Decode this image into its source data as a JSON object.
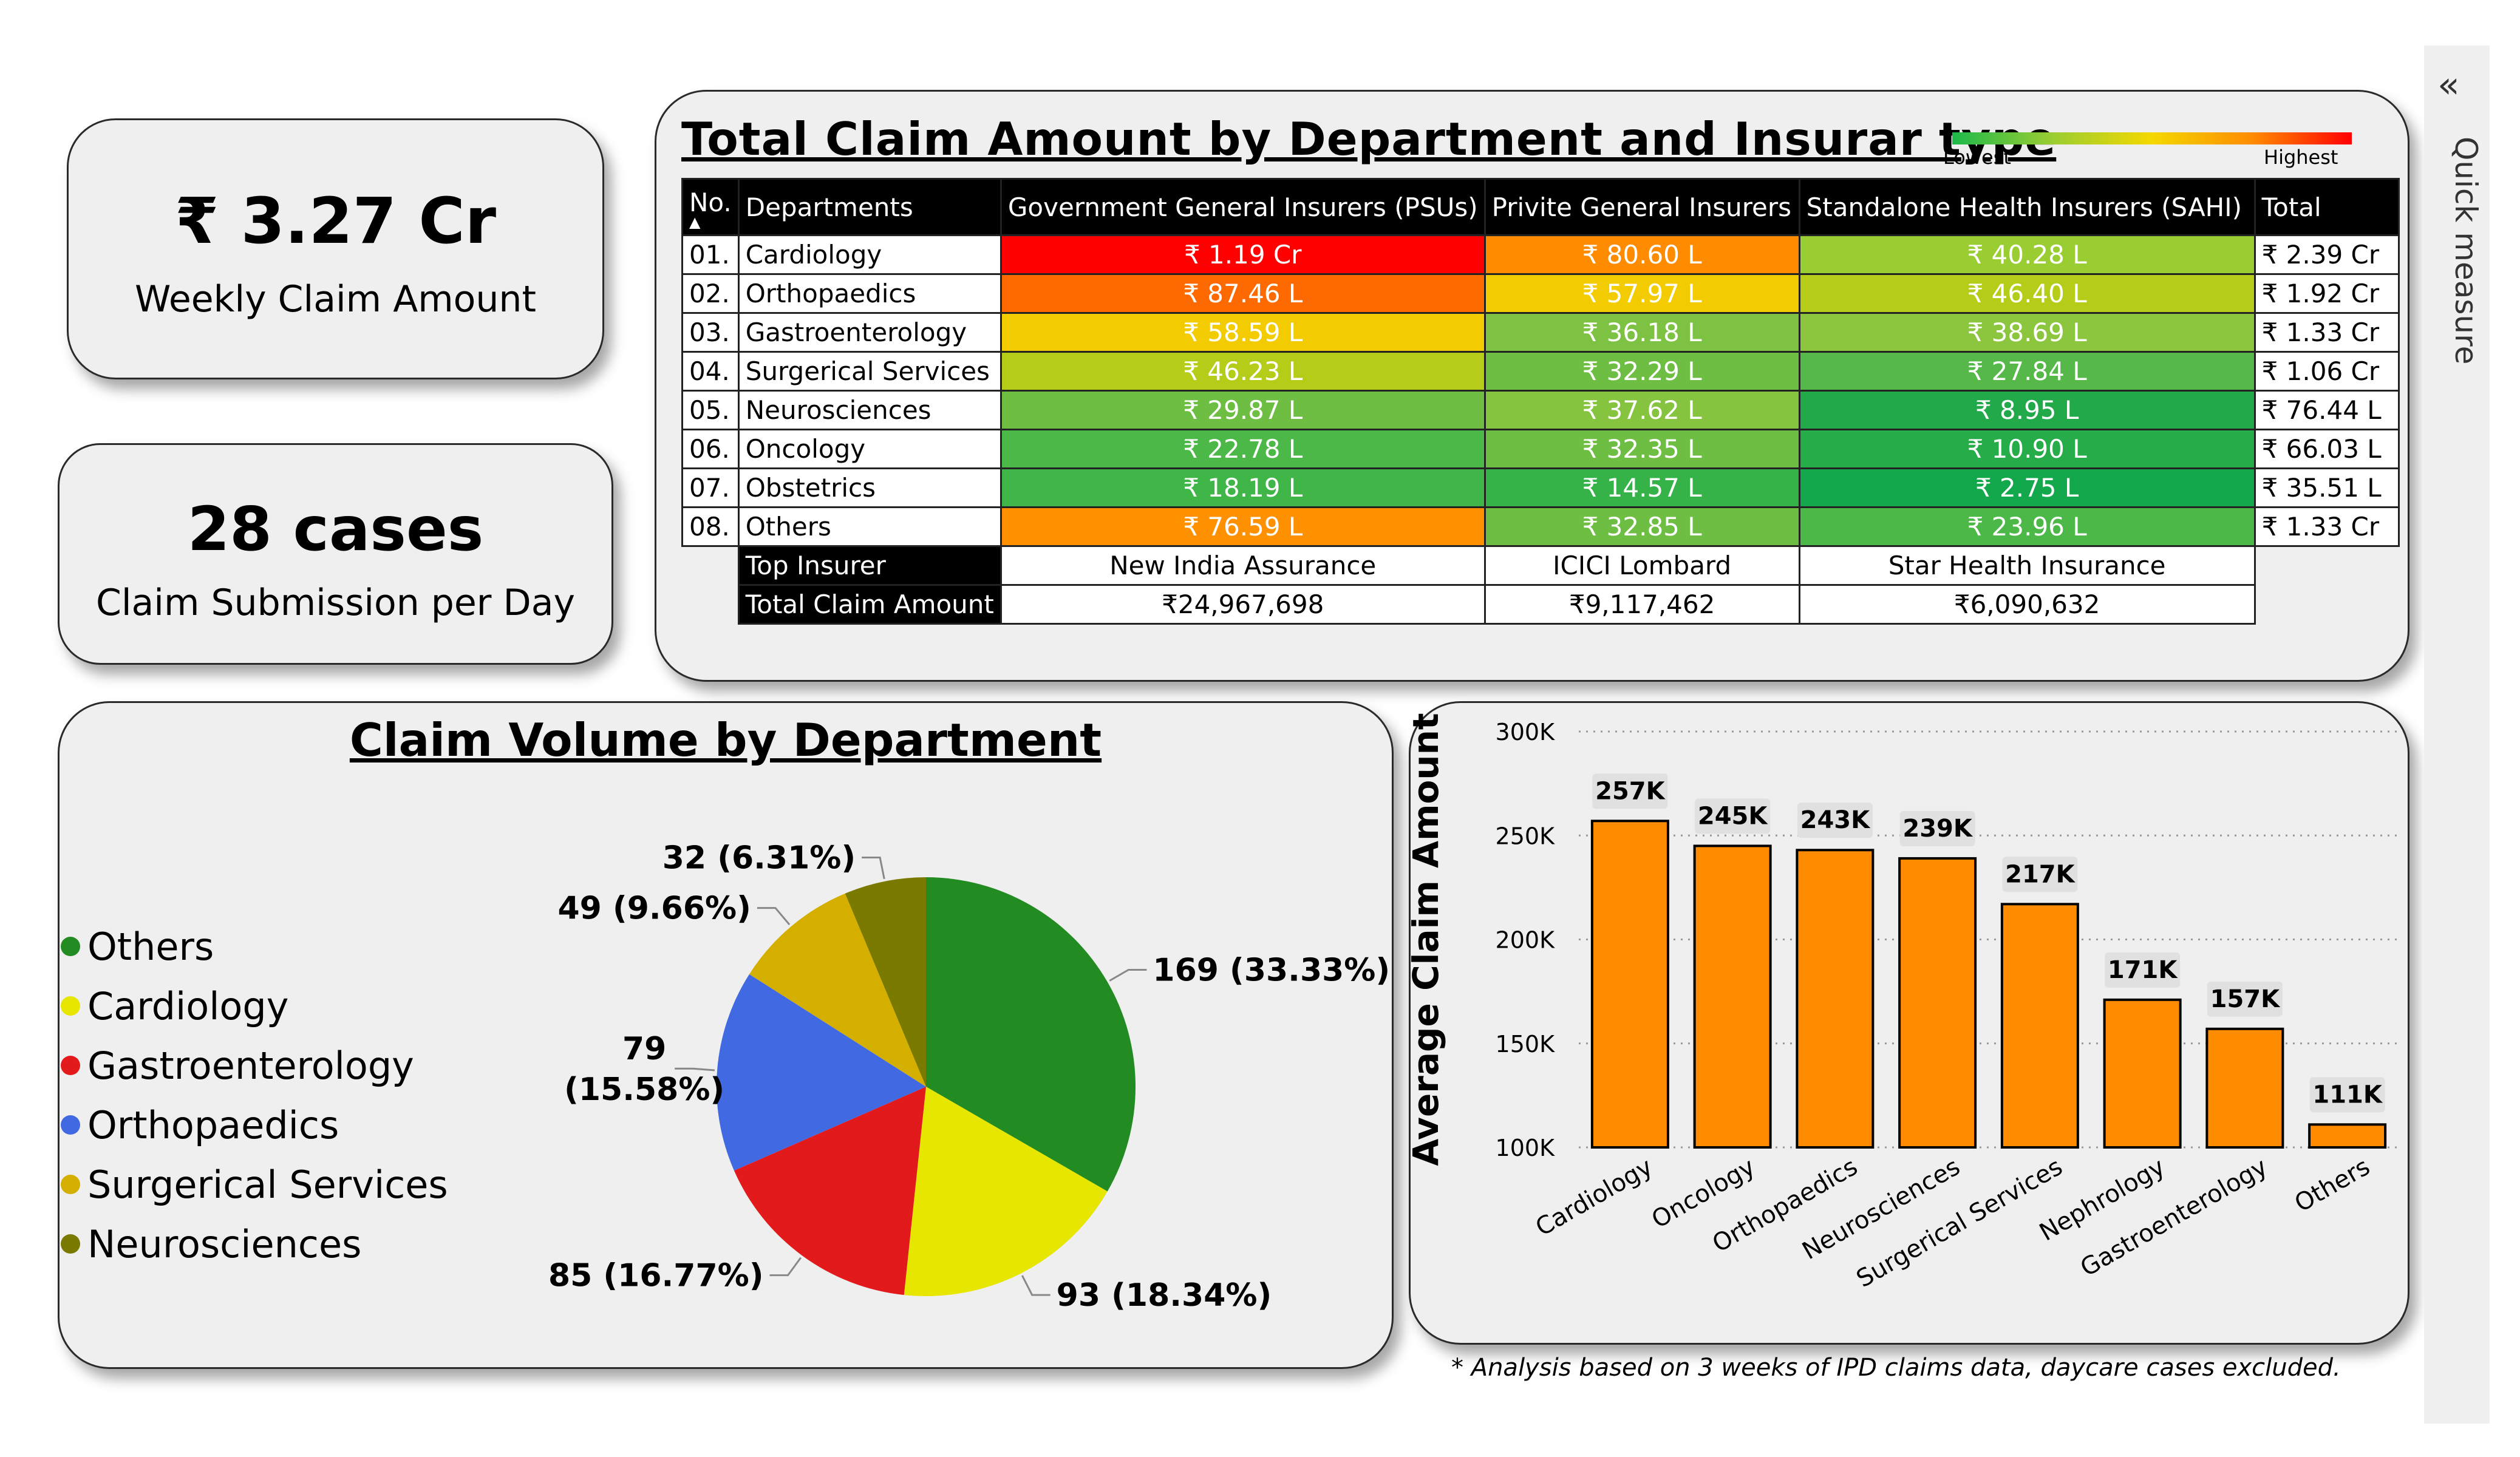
{
  "kpis": {
    "weekly_value": "₹ 3.27 Cr",
    "weekly_label": "Weekly Claim Amount",
    "cases_value": "28 cases",
    "cases_label": "Claim Submission per Day"
  },
  "matrix": {
    "title": "Total Claim Amount by Department and Insurar type",
    "legend_low": "Lowest",
    "legend_high": "Highest",
    "headers": [
      "No.",
      "Departments",
      "Government General Insurers (PSUs)",
      "Privite General Insurers",
      "Standalone Health Insurers (SAHI)",
      "Total"
    ],
    "rows": [
      {
        "no": "01.",
        "dept": "Cardiology",
        "psu": "₹ 1.19 Cr",
        "pvt": "₹ 80.60 L",
        "sahi": "₹ 40.28 L",
        "total": "₹ 2.39 Cr",
        "psu_color": "#ff0000",
        "pvt_color": "#ff8c00",
        "sahi_color": "#9acd32"
      },
      {
        "no": "02.",
        "dept": "Orthopaedics",
        "psu": "₹ 87.46 L",
        "pvt": "₹ 57.97 L",
        "sahi": "₹ 46.40 L",
        "total": "₹ 1.92 Cr",
        "psu_color": "#ff6a00",
        "pvt_color": "#f2cc00",
        "sahi_color": "#b5cc18"
      },
      {
        "no": "03.",
        "dept": "Gastroenterology",
        "psu": "₹ 58.59 L",
        "pvt": "₹ 36.18 L",
        "sahi": "₹ 38.69 L",
        "total": "₹ 1.33 Cr",
        "psu_color": "#f2cc00",
        "pvt_color": "#7dc242",
        "sahi_color": "#8cc63f"
      },
      {
        "no": "04.",
        "dept": "Surgerical Services",
        "psu": "₹ 46.23 L",
        "pvt": "₹ 32.29 L",
        "sahi": "₹ 27.84 L",
        "total": "₹ 1.06 Cr",
        "psu_color": "#b5cc18",
        "pvt_color": "#6ebe44",
        "sahi_color": "#55b848"
      },
      {
        "no": "05.",
        "dept": "Neurosciences",
        "psu": "₹ 29.87 L",
        "pvt": "₹ 37.62 L",
        "sahi": "₹ 8.95 L",
        "total": "₹ 76.44 L",
        "psu_color": "#6ebe44",
        "pvt_color": "#86c440",
        "sahi_color": "#22aa4a"
      },
      {
        "no": "06.",
        "dept": "Oncology",
        "psu": "₹ 22.78 L",
        "pvt": "₹ 32.35 L",
        "sahi": "₹ 10.90 L",
        "total": "₹ 66.03 L",
        "psu_color": "#4cb848",
        "pvt_color": "#6ebe44",
        "sahi_color": "#26ac49"
      },
      {
        "no": "07.",
        "dept": "Obstetrics",
        "psu": "₹ 18.19 L",
        "pvt": "₹ 14.57 L",
        "sahi": "₹ 2.75 L",
        "total": "₹ 35.51 L",
        "psu_color": "#40b548",
        "pvt_color": "#36b348",
        "sahi_color": "#12a84b"
      },
      {
        "no": "08.",
        "dept": "Others",
        "psu": "₹ 76.59 L",
        "pvt": "₹ 32.85 L",
        "sahi": "₹ 23.96 L",
        "total": "₹ 1.33 Cr",
        "psu_color": "#ff9000",
        "pvt_color": "#6ebe44",
        "sahi_color": "#4cb848"
      }
    ],
    "top_insurer_label": "Top Insurer",
    "total_claim_label": "Total Claim Amount",
    "top_insurers": [
      "New India Assurance",
      "ICICI Lombard",
      "Star Health Insurance"
    ],
    "top_totals": [
      "₹24,967,698",
      "₹9,117,462",
      "₹6,090,632"
    ]
  },
  "pie": {
    "title": "Claim Volume by Department",
    "legend": [
      {
        "name": "Others",
        "color": "#228b22"
      },
      {
        "name": "Cardiology",
        "color": "#e6e600"
      },
      {
        "name": "Gastroenterology",
        "color": "#e31a1c"
      },
      {
        "name": "Orthopaedics",
        "color": "#4169e1"
      },
      {
        "name": "Surgerical Services",
        "color": "#d4af00"
      },
      {
        "name": "Neurosciences",
        "color": "#7a7a00"
      }
    ]
  },
  "chart_data": [
    {
      "type": "pie",
      "title": "Claim Volume by Department",
      "slices": [
        {
          "label": "Others",
          "value": 169,
          "percent": 33.33,
          "text": "169 (33.33%)",
          "color": "#228b22"
        },
        {
          "label": "Cardiology",
          "value": 93,
          "percent": 18.34,
          "text": "93 (18.34%)",
          "color": "#e6e600"
        },
        {
          "label": "Gastroenterology",
          "value": 85,
          "percent": 16.77,
          "text": "85 (16.77%)",
          "color": "#e31a1c"
        },
        {
          "label": "Orthopaedics",
          "value": 79,
          "percent": 15.58,
          "text_line1": "79",
          "text_line2": "(15.58%)",
          "color": "#4169e1"
        },
        {
          "label": "Surgerical Services",
          "value": 49,
          "percent": 9.66,
          "text": "49 (9.66%)",
          "color": "#d4af00"
        },
        {
          "label": "Neurosciences",
          "value": 32,
          "percent": 6.31,
          "text": "32 (6.31%)",
          "color": "#7a7a00"
        }
      ],
      "legend_position": "left"
    },
    {
      "type": "bar",
      "title": "",
      "ylabel": "Average Claim Amount",
      "xlabel": "",
      "categories": [
        "Cardiology",
        "Oncology",
        "Orthopaedics",
        "Neurosciences",
        "Surgerical Services",
        "Nephrology",
        "Gastroenterology",
        "Others"
      ],
      "values": [
        257000,
        245000,
        243000,
        239000,
        217000,
        171000,
        157000,
        111000
      ],
      "data_labels": [
        "257K",
        "245K",
        "243K",
        "239K",
        "217K",
        "171K",
        "157K",
        "111K"
      ],
      "yticks": [
        "100K",
        "150K",
        "200K",
        "250K",
        "300K"
      ],
      "ylim": [
        100000,
        300000
      ],
      "bar_color": "#ff8c00",
      "grid": "horizontal dotted"
    }
  ],
  "footnote": "* Analysis based on 3 weeks of IPD claims data, daycare cases excluded.",
  "side_pane": {
    "label": "Quick measure",
    "icon": "double-chevron-left-icon"
  }
}
